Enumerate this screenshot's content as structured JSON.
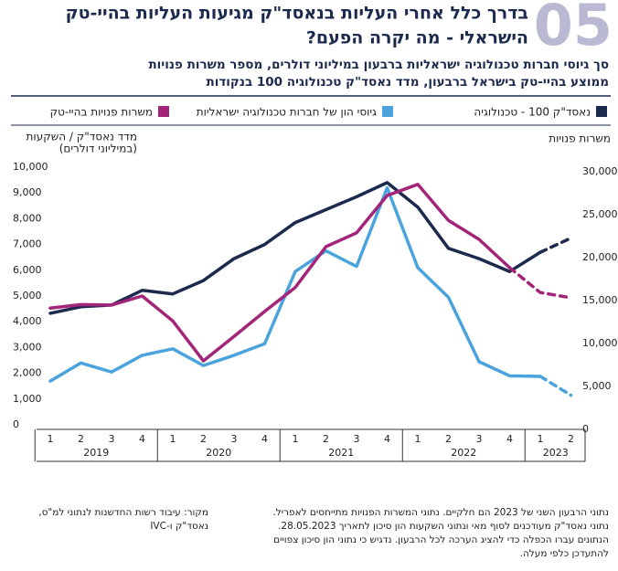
{
  "chart_data": {
    "type": "line",
    "badge": "05",
    "title": [
      "בדרך כלל אחרי העליות בנאסד\"ק מגיעות העליות בהיי-טק",
      "הישראלי - מה יקרה הפעם?"
    ],
    "subtitle": [
      "סך גיוסי חברות טכנולוגיה ישראליות ברבעון במיליוני דולרים, מספר משרות פנויות",
      "ממוצע בהיי-טק בישראל ברבעון, מדד נאסד\"ק טכנולוגיה 100 בנקודות"
    ],
    "y_label": [
      "מדד נאסד\"ק / השקעות",
      "(במיליוני דולרים)"
    ],
    "y2_label": "משרות פנויות",
    "groups": [
      {
        "label": "2019",
        "quarters": [
          "1",
          "2",
          "3",
          "4"
        ]
      },
      {
        "label": "2020",
        "quarters": [
          "1",
          "2",
          "3",
          "4"
        ]
      },
      {
        "label": "2021",
        "quarters": [
          "1",
          "2",
          "3",
          "4"
        ]
      },
      {
        "label": "2022",
        "quarters": [
          "1",
          "2",
          "3",
          "4"
        ]
      },
      {
        "label": "2023",
        "quarters": [
          "1",
          "2"
        ]
      }
    ],
    "series": [
      {
        "name": "נאסד\"ק 100 - טכנולוגיה",
        "color": "#1c2a4d",
        "dashed_from": 16,
        "values": [
          4330,
          4580,
          4650,
          5220,
          5080,
          5600,
          6450,
          7000,
          7850,
          8350,
          8850,
          9400,
          8450,
          6850,
          6450,
          5950,
          6700,
          7250
        ]
      },
      {
        "name": "גיוסי הון של חברות טכנולוגיה ישראליות",
        "color": "#4ba3dd",
        "dashed_from": 16,
        "values": [
          1700,
          2400,
          2050,
          2700,
          2950,
          2300,
          2700,
          3150,
          5950,
          6750,
          6150,
          9200,
          6100,
          4950,
          2450,
          1900,
          1880,
          1150
        ]
      },
      {
        "name": "משרות פנויות בהיי-טק",
        "color": "#a3257a",
        "axis": "y2",
        "dashed_from": 15,
        "values": [
          13600,
          14000,
          13950,
          15000,
          12100,
          7450,
          10300,
          13200,
          16000,
          20750,
          22350,
          26700,
          28000,
          23800,
          21600,
          18300,
          15400,
          14800
        ]
      }
    ],
    "ylim": [
      0,
      10000
    ],
    "yticks": [
      0,
      {
        "value": 1000,
        "label": "1,000"
      },
      {
        "value": 2000,
        "label": "2,000"
      },
      {
        "value": 3000,
        "label": "3,000"
      },
      {
        "value": 4000,
        "label": "4,000"
      },
      {
        "value": 5000,
        "label": "5,000"
      },
      {
        "value": 6000,
        "label": "6,000"
      },
      {
        "value": 7000,
        "label": "7,000"
      },
      {
        "value": 8000,
        "label": "8,000"
      },
      {
        "value": 9000,
        "label": "9,000"
      },
      {
        "value": 10000,
        "label": "10,000"
      }
    ],
    "y2lim": [
      0,
      30000
    ],
    "y2ticks": [
      0,
      {
        "value": 5000,
        "label": "5,000"
      },
      {
        "value": 10000,
        "label": "10,000"
      },
      {
        "value": 15000,
        "label": "15,000"
      },
      {
        "value": 20000,
        "label": "20,000"
      },
      {
        "value": 25000,
        "label": "25,000"
      },
      {
        "value": 30000,
        "label": "30,000"
      }
    ],
    "notes": [
      "נתוני הרבעון השני של 2023 הם חלקיים. נתוני המשרות הפנויות מתייחסים לאפריל.",
      "נתוני נאסד\"ק מעודכנים לסוף מאי ונתוני השקעות הון סיכון לתאריך 28.05.2023.",
      "הנתונים עברו הכפלה כדי להציג הערכה לכל הרבעון. נדגיש כי נתוני הון סיכון צפויים",
      "להתעדכן כלפי מעלה."
    ],
    "source": [
      "מקור: עיבוד רשות החדשנות לנתוני למ\"ס,",
      "נאסד\"ק ו-IVC"
    ]
  }
}
